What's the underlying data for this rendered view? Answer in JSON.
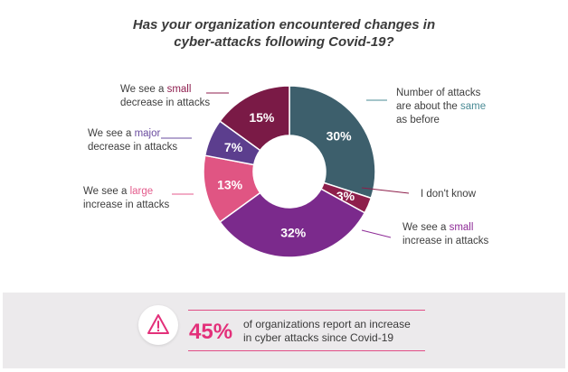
{
  "chart_data": {
    "type": "pie",
    "title_line1": "Has your organization encountered changes in",
    "title_line2": "cyber-attacks following Covid-19?",
    "slices": [
      {
        "pre": "Number of attacks",
        "pre2": "are about the ",
        "hl": "same",
        "post": "",
        "line3": "as before",
        "value": 30,
        "label": "30%",
        "color": "#3d5f6c",
        "hlcolor": "#4a8b95",
        "name": "label-same"
      },
      {
        "pre": "I don't know",
        "value": 3,
        "label": "3%",
        "color": "#8e1f4b",
        "name": "label-dont-know"
      },
      {
        "pre": "We see a ",
        "hl": "small",
        "line2": "increase in attacks",
        "value": 32,
        "label": "32%",
        "color": "#7b2a8c",
        "hlcolor": "#8e2c97",
        "name": "label-small-increase"
      },
      {
        "pre": "We see a ",
        "hl": "large",
        "line2": "increase in attacks",
        "value": 13,
        "label": "13%",
        "color": "#e05583",
        "hlcolor": "#e45b8c",
        "name": "label-large-increase"
      },
      {
        "pre": "We see a ",
        "hl": "major",
        "line2": "decrease in attacks",
        "value": 7,
        "label": "7%",
        "color": "#5c3e8e",
        "hlcolor": "#6a4c9f",
        "name": "label-major-decrease"
      },
      {
        "pre": "We see a ",
        "hl": "small",
        "line2": "decrease in attacks",
        "value": 15,
        "label": "15%",
        "color": "#7a1a46",
        "hlcolor": "#8f1f4f",
        "name": "label-small-decrease"
      }
    ]
  },
  "callout": {
    "big": "45%",
    "line1": "of organizations report an increase",
    "line2": "in cyber attacks since Covid-19"
  },
  "icon": "warning-triangle-icon"
}
